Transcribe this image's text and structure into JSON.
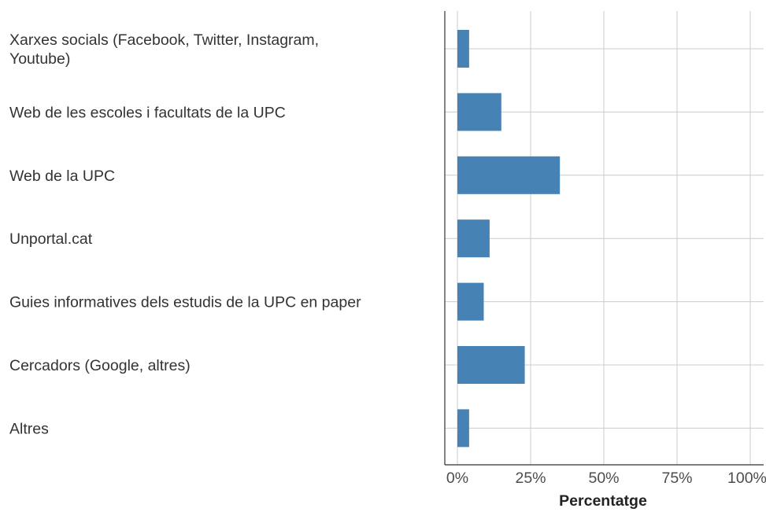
{
  "chart_data": {
    "type": "bar",
    "orientation": "horizontal",
    "categories": [
      "Xarxes socials (Facebook, Twitter, Instagram, Youtube)",
      "Web de les escoles i facultats de la UPC",
      "Web de la UPC",
      "Unportal.cat",
      "Guies informatives dels estudis de la UPC en paper",
      "Cercadors (Google, altres)",
      "Altres"
    ],
    "category_lines": [
      [
        "Xarxes socials (Facebook, Twitter, Instagram,",
        "Youtube)"
      ],
      [
        "Web de les escoles i facultats de la UPC"
      ],
      [
        "Web de la UPC"
      ],
      [
        "Unportal.cat"
      ],
      [
        "Guies informatives dels estudis de la UPC en paper"
      ],
      [
        "Cercadors (Google, altres)"
      ],
      [
        "Altres"
      ]
    ],
    "values": [
      4,
      15,
      35,
      11,
      9,
      23,
      4
    ],
    "xlim": [
      0,
      100
    ],
    "xticks": [
      0,
      25,
      50,
      75,
      100
    ],
    "xtick_labels": [
      "0%",
      "25%",
      "50%",
      "75%",
      "100%"
    ],
    "xlabel": "Percentatge",
    "ylabel": "",
    "title": "",
    "grid": true,
    "bar_color": "#4682B4"
  }
}
